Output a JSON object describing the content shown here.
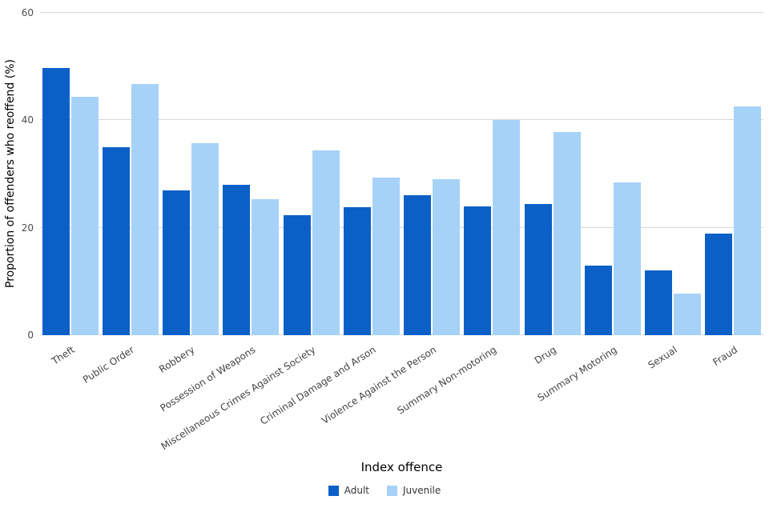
{
  "chart_data": {
    "type": "bar",
    "title": "",
    "xlabel": "Index offence",
    "ylabel": "Proportion of offenders who reoffend (%)",
    "categories": [
      "Theft",
      "Public Order",
      "Robbery",
      "Possession of Weapons",
      "Miscellaneous Crimes Against Society",
      "Criminal Damage and Arson",
      "Violence Against the Person",
      "Summary Non-motoring",
      "Drug",
      "Summary Motoring",
      "Sexual",
      "Fraud"
    ],
    "series": [
      {
        "name": "Adult",
        "color": "#0b60c8",
        "values": [
          49.7,
          35.0,
          26.9,
          28.0,
          22.4,
          23.8,
          26.1,
          24.0,
          24.4,
          13.0,
          12.0,
          18.9
        ]
      },
      {
        "name": "Juvenile",
        "color": "#a6d2f8",
        "values": [
          44.4,
          46.8,
          35.8,
          25.3,
          34.4,
          29.3,
          29.0,
          40.0,
          37.8,
          28.4,
          7.8,
          42.6
        ]
      }
    ],
    "ylim": [
      0,
      60
    ],
    "yticks": [
      0,
      20,
      40,
      60
    ],
    "grid": true,
    "gridline_color": "#d9d9d9",
    "legend_position": "bottom"
  }
}
